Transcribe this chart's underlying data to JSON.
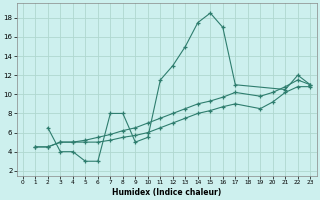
{
  "xlabel": "Humidex (Indice chaleur)",
  "bg_color": "#cdf0ee",
  "grid_color": "#b0d8d0",
  "line_color": "#2e7d6e",
  "xlim": [
    -0.5,
    23.5
  ],
  "ylim": [
    1.5,
    19.5
  ],
  "xticks": [
    0,
    1,
    2,
    3,
    4,
    5,
    6,
    7,
    8,
    9,
    10,
    11,
    12,
    13,
    14,
    15,
    16,
    17,
    18,
    19,
    20,
    21,
    22,
    23
  ],
  "yticks": [
    2,
    4,
    6,
    8,
    10,
    12,
    14,
    16,
    18
  ],
  "line1_x": [
    2,
    3,
    4,
    5,
    6,
    7,
    8,
    9,
    10,
    11,
    12,
    13,
    14,
    15,
    16,
    17,
    21,
    22,
    23
  ],
  "line1_y": [
    6.5,
    4.0,
    4.0,
    3.0,
    3.0,
    8.0,
    8.0,
    5.0,
    5.5,
    11.5,
    13.0,
    15.0,
    17.5,
    18.5,
    17.0,
    11.0,
    10.5,
    12.0,
    11.0
  ],
  "line2_x": [
    1,
    2,
    3,
    4,
    5,
    6,
    7,
    8,
    9,
    10,
    11,
    12,
    13,
    14,
    15,
    16,
    17,
    19,
    20,
    21,
    22,
    23
  ],
  "line2_y": [
    4.5,
    4.5,
    5.0,
    5.0,
    5.0,
    5.0,
    5.2,
    5.5,
    5.7,
    6.0,
    6.5,
    7.0,
    7.5,
    8.0,
    8.3,
    8.7,
    9.0,
    8.5,
    9.2,
    10.2,
    10.8,
    10.8
  ],
  "line3_x": [
    1,
    2,
    3,
    4,
    5,
    6,
    7,
    8,
    9,
    10,
    11,
    12,
    13,
    14,
    15,
    16,
    17,
    19,
    20,
    21,
    22,
    23
  ],
  "line3_y": [
    4.5,
    4.5,
    5.0,
    5.0,
    5.2,
    5.5,
    5.8,
    6.2,
    6.5,
    7.0,
    7.5,
    8.0,
    8.5,
    9.0,
    9.3,
    9.7,
    10.2,
    9.8,
    10.2,
    10.8,
    11.5,
    11.0
  ]
}
